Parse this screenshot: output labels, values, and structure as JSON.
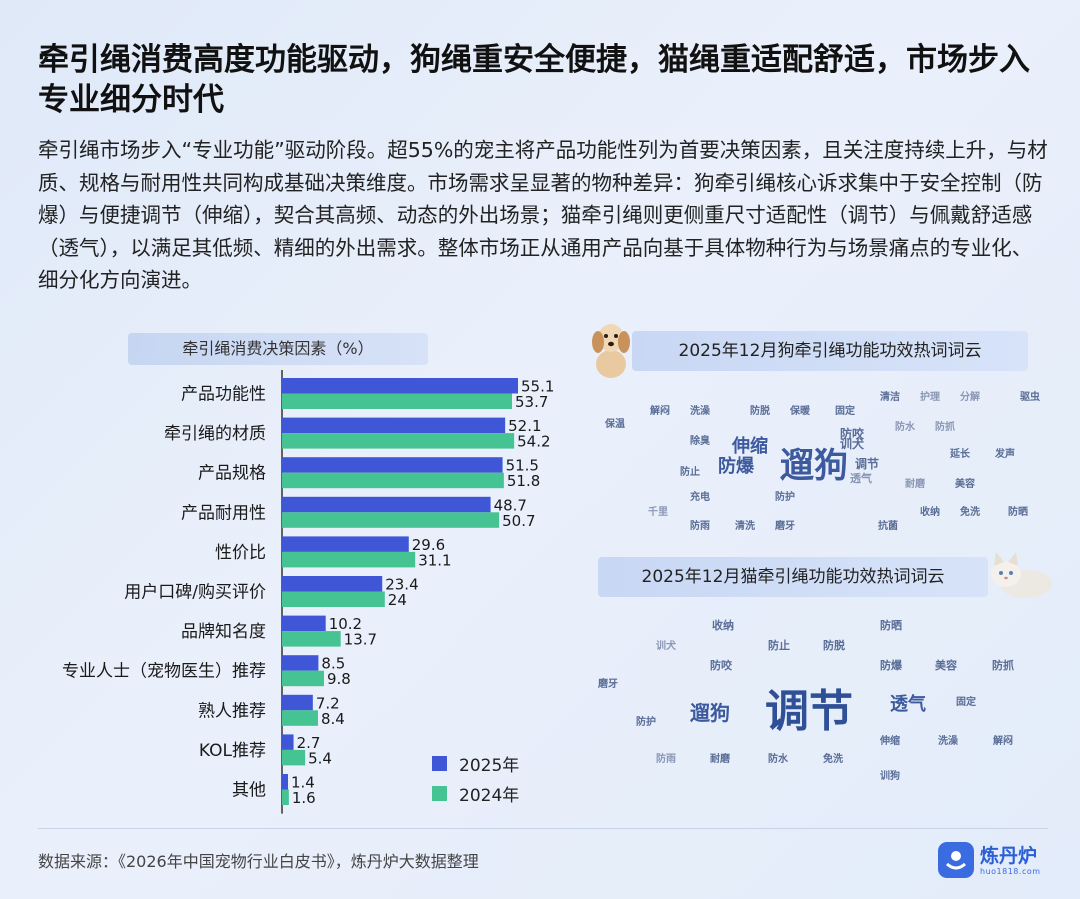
{
  "title": "牵引绳消费高度功能驱动，狗绳重安全便捷，猫绳重适配舒适，市场步入专业细分时代",
  "description": "牵引绳市场步入“专业功能”驱动阶段。超55%的宠主将产品功能性列为首要决策因素，且关注度持续上升，与材质、规格与耐用性共同构成基础决策维度。市场需求呈显著的物种差异：狗牵引绳核心诉求集中于安全控制（防爆）与便捷调节（伸缩），契合其高频、动态的外出场景；猫牵引绳则更侧重尺寸适配性（调节）与佩戴舒适感（透气），以满足其低频、精细的外出需求。整体市场正从通用产品向基于具体物种行为与场景痛点的专业化、细分化方向演进。",
  "chart_data": {
    "type": "bar",
    "orientation": "horizontal",
    "title": "牵引绳消费决策因素（%）",
    "categories": [
      "产品功能性",
      "牵引绳的材质",
      "产品规格",
      "产品耐用性",
      "性价比",
      "用户口碑/购买评价",
      "品牌知名度",
      "专业人士（宠物医生）推荐",
      "熟人推荐",
      "KOL推荐",
      "其他"
    ],
    "series": [
      {
        "name": "2025年",
        "color": "#3f57d6",
        "values": [
          55.1,
          52.1,
          51.5,
          48.7,
          29.6,
          23.4,
          10.2,
          8.5,
          7.2,
          2.7,
          1.4
        ],
        "labels": [
          "55.1",
          "52.1",
          "51.5",
          "48.7",
          "29.6",
          "23.4",
          "10.2",
          "8.5",
          "7.2",
          "2.7",
          "1.4"
        ]
      },
      {
        "name": "2024年",
        "color": "#46c392",
        "values": [
          53.7,
          54.2,
          51.8,
          50.7,
          31.1,
          24,
          13.7,
          9.8,
          8.4,
          5.4,
          1.6
        ],
        "labels": [
          "53.7",
          "54.2",
          "51.8",
          "50.7",
          "31.1",
          "24",
          "13.7",
          "9.8",
          "8.4",
          "5.4",
          "1.6"
        ]
      }
    ],
    "xlim": [
      0,
      60
    ],
    "legend_position": "bottom-right",
    "grid": false
  },
  "word_clouds": {
    "dog": {
      "title": "2025年12月狗牵引绳功能功效热词词云",
      "icon": "dog-icon",
      "words": [
        "遛狗",
        "伸缩",
        "防爆",
        "训犬",
        "调节",
        "防咬",
        "透气",
        "清洁",
        "护理",
        "分解",
        "驱虫",
        "解闷",
        "洗澡",
        "防脱",
        "保暖",
        "固定",
        "保温",
        "防水",
        "除臭",
        "防抓",
        "延长",
        "发声",
        "防止",
        "耐磨",
        "美容",
        "充电",
        "防护",
        "收纳",
        "免洗",
        "防晒",
        "千里",
        "防雨",
        "清洗",
        "磨牙",
        "抗菌"
      ]
    },
    "cat": {
      "title": "2025年12月猫牵引绳功能功效热词词云",
      "icon": "cat-icon",
      "words": [
        "调节",
        "遛狗",
        "透气",
        "收纳",
        "防止",
        "防脱",
        "防晒",
        "训犬",
        "防咬",
        "防爆",
        "美容",
        "防抓",
        "磨牙",
        "固定",
        "防护",
        "伸缩",
        "洗澡",
        "解闷",
        "防雨",
        "耐磨",
        "防水",
        "免洗",
        "训狗"
      ]
    }
  },
  "footer": {
    "source": "数据来源：《2026年中国宠物行业白皮书》，炼丹炉大数据整理",
    "logo_name": "炼丹炉",
    "logo_url": "huo1818.com"
  },
  "colors": {
    "accent": "#3a6be0",
    "series_2025": "#3f57d6",
    "series_2024": "#46c392"
  }
}
